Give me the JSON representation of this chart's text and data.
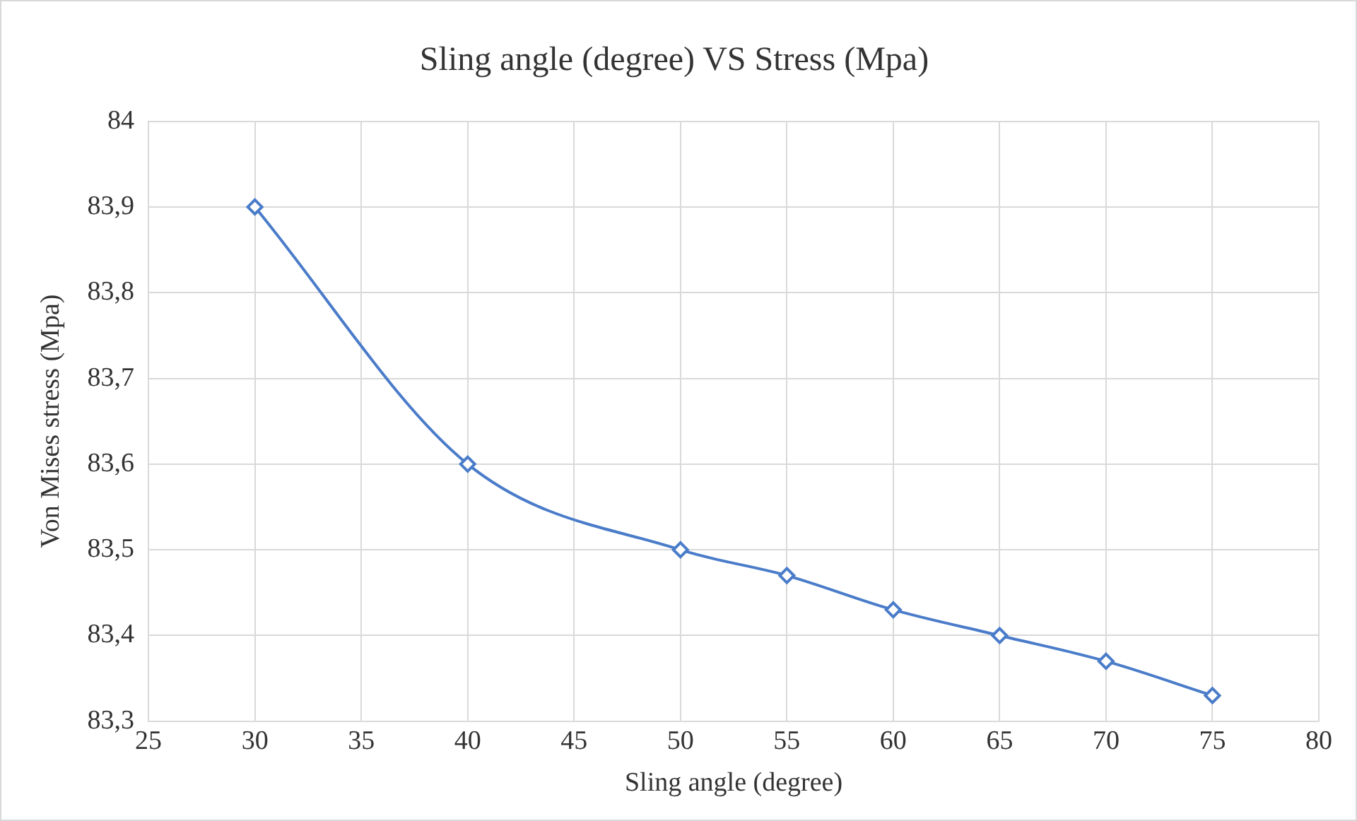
{
  "chart_data": {
    "type": "line",
    "title": "Sling angle (degree) VS Stress (Mpa)",
    "xlabel": "Sling angle (degree)",
    "ylabel": "Von Mises stress (Mpa)",
    "x": [
      30,
      40,
      50,
      55,
      60,
      65,
      70,
      75
    ],
    "series": [
      {
        "color": "#4a7cc9",
        "values": [
          83.9,
          83.6,
          83.5,
          83.47,
          83.43,
          83.4,
          83.37,
          83.33
        ]
      }
    ],
    "xlim": [
      25,
      80
    ],
    "xticks": [
      25,
      30,
      35,
      40,
      45,
      50,
      55,
      60,
      65,
      70,
      75,
      80
    ],
    "ylim": [
      83.3,
      84
    ],
    "yticks": [
      {
        "value": 83.3,
        "label": "83,3"
      },
      {
        "value": 83.4,
        "label": "83,4"
      },
      {
        "value": 83.5,
        "label": "83,5"
      },
      {
        "value": 83.6,
        "label": "83,6"
      },
      {
        "value": 83.7,
        "label": "83,7"
      },
      {
        "value": 83.8,
        "label": "83,8"
      },
      {
        "value": 83.9,
        "label": "83,9"
      },
      84
    ],
    "grid": true,
    "legend": false,
    "marker": "diamond",
    "line_style": "solid"
  }
}
